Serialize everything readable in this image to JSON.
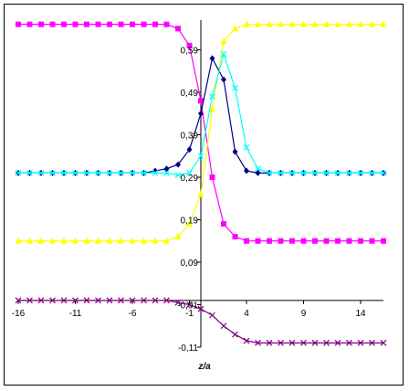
{
  "chart_data": {
    "type": "line",
    "title": "",
    "xlabel": "z/a",
    "ylabel": "",
    "xlim": [
      -16,
      16
    ],
    "ylim": [
      -0.11,
      0.66
    ],
    "x_ticks": [
      -16,
      -11,
      -6,
      -1,
      4,
      9,
      14
    ],
    "x_tick_labels": [
      "-16",
      "-11",
      "-6",
      "-1",
      "4",
      "9",
      "14"
    ],
    "y_ticks": [
      -0.11,
      -0.01,
      0.09,
      0.19,
      0.29,
      0.39,
      0.49,
      0.59
    ],
    "y_tick_labels": [
      "-0,11",
      "-0,01",
      "0,09",
      "0,19",
      "0,29",
      "0,39",
      "0,49",
      "0,59"
    ],
    "grid": false,
    "legend": "none",
    "x": [
      -16,
      -15,
      -14,
      -13,
      -12,
      -11,
      -10,
      -9,
      -8,
      -7,
      -6,
      -5,
      -4,
      -3,
      -2,
      -1,
      0,
      1,
      2,
      3,
      4,
      5,
      6,
      7,
      8,
      9,
      10,
      11,
      12,
      13,
      14,
      15,
      16
    ],
    "series": [
      {
        "color": "#ff00ff",
        "marker": "square",
        "values": [
          0.65,
          0.65,
          0.65,
          0.65,
          0.65,
          0.65,
          0.65,
          0.65,
          0.65,
          0.65,
          0.65,
          0.65,
          0.65,
          0.65,
          0.64,
          0.6,
          0.47,
          0.29,
          0.18,
          0.15,
          0.14,
          0.14,
          0.14,
          0.14,
          0.14,
          0.14,
          0.14,
          0.14,
          0.14,
          0.14,
          0.14,
          0.14,
          0.14
        ]
      },
      {
        "color": "#ffff00",
        "marker": "triangle",
        "values": [
          0.14,
          0.14,
          0.14,
          0.14,
          0.14,
          0.14,
          0.14,
          0.14,
          0.14,
          0.14,
          0.14,
          0.14,
          0.14,
          0.14,
          0.15,
          0.18,
          0.25,
          0.45,
          0.61,
          0.64,
          0.65,
          0.65,
          0.65,
          0.65,
          0.65,
          0.65,
          0.65,
          0.65,
          0.65,
          0.65,
          0.65,
          0.65,
          0.65
        ]
      },
      {
        "color": "#000080",
        "marker": "diamond",
        "values": [
          0.3,
          0.3,
          0.3,
          0.3,
          0.3,
          0.3,
          0.3,
          0.3,
          0.3,
          0.3,
          0.3,
          0.3,
          0.305,
          0.31,
          0.32,
          0.355,
          0.44,
          0.57,
          0.52,
          0.35,
          0.305,
          0.3,
          0.3,
          0.3,
          0.3,
          0.3,
          0.3,
          0.3,
          0.3,
          0.3,
          0.3,
          0.3,
          0.3
        ]
      },
      {
        "color": "#00ffff",
        "marker": "x",
        "values": [
          0.3,
          0.3,
          0.3,
          0.3,
          0.3,
          0.3,
          0.3,
          0.3,
          0.3,
          0.3,
          0.3,
          0.3,
          0.3,
          0.3,
          0.295,
          0.3,
          0.34,
          0.48,
          0.58,
          0.5,
          0.36,
          0.31,
          0.3,
          0.3,
          0.3,
          0.3,
          0.3,
          0.3,
          0.3,
          0.3,
          0.3,
          0.3,
          0.3
        ]
      },
      {
        "color": "#800080",
        "marker": "x",
        "values": [
          0.0,
          0.0,
          0.0,
          0.0,
          0.0,
          0.0,
          0.0,
          0.0,
          0.0,
          0.0,
          0.0,
          0.0,
          0.0,
          0.0,
          -0.005,
          -0.01,
          -0.02,
          -0.035,
          -0.06,
          -0.08,
          -0.095,
          -0.1,
          -0.1,
          -0.1,
          -0.1,
          -0.1,
          -0.1,
          -0.1,
          -0.1,
          -0.1,
          -0.1,
          -0.1,
          -0.1
        ]
      }
    ]
  }
}
